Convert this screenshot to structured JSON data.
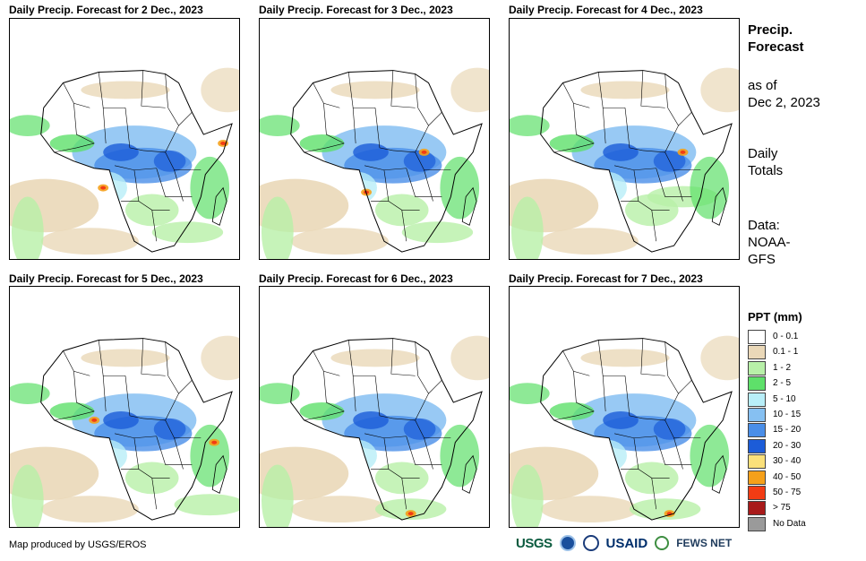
{
  "panels": [
    {
      "title": "Daily Precip. Forecast for 2 Dec., 2023"
    },
    {
      "title": "Daily Precip. Forecast for 3 Dec., 2023"
    },
    {
      "title": "Daily Precip. Forecast for 4 Dec., 2023"
    },
    {
      "title": "Daily Precip. Forecast for 5 Dec., 2023"
    },
    {
      "title": "Daily Precip. Forecast for 6 Dec., 2023"
    },
    {
      "title": "Daily Precip. Forecast for 7 Dec., 2023"
    }
  ],
  "side": {
    "title_line1": "Precip.",
    "title_line2": "Forecast",
    "asof_line1": "as of",
    "asof_line2": "Dec 2, 2023",
    "totals_line1": "Daily",
    "totals_line2": "Totals",
    "data_line1": "Data:",
    "data_line2": "NOAA-",
    "data_line3": "GFS"
  },
  "legend": {
    "title": "PPT (mm)",
    "items": [
      {
        "label": "0 - 0.1",
        "color": "#ffffff"
      },
      {
        "label": "0.1 - 1",
        "color": "#ead8b8"
      },
      {
        "label": "1 - 2",
        "color": "#b8f0a8"
      },
      {
        "label": "2 - 5",
        "color": "#5ee06a"
      },
      {
        "label": "5 - 10",
        "color": "#b8eef8"
      },
      {
        "label": "10 - 15",
        "color": "#86c0f2"
      },
      {
        "label": "15 - 20",
        "color": "#4a8ee8"
      },
      {
        "label": "20 - 30",
        "color": "#1c5cd8"
      },
      {
        "label": "30 - 40",
        "color": "#fae07a"
      },
      {
        "label": "40 - 50",
        "color": "#f5a01a"
      },
      {
        "label": "50 - 75",
        "color": "#f23c14"
      },
      {
        "label": "> 75",
        "color": "#a81a1a"
      },
      {
        "label": "No Data",
        "color": "#9a9a9a"
      }
    ]
  },
  "footer": {
    "credit": "Map produced by USGS/EROS",
    "logos": {
      "usgs": "USGS",
      "usaid": "USAID",
      "fews": "FEWS NET"
    }
  }
}
